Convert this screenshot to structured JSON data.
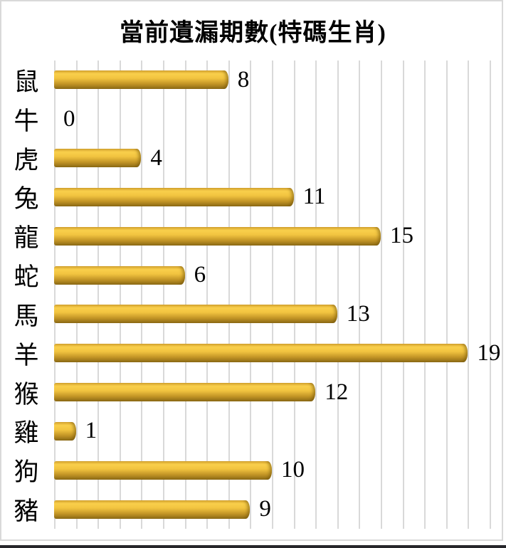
{
  "title": "當前遺漏期數(特碼生肖)",
  "chart_data": {
    "type": "bar",
    "orientation": "horizontal",
    "title": "當前遺漏期數(特碼生肖)",
    "categories": [
      "鼠",
      "牛",
      "虎",
      "兔",
      "龍",
      "蛇",
      "馬",
      "羊",
      "猴",
      "雞",
      "狗",
      "豬"
    ],
    "values": [
      8,
      0,
      4,
      11,
      15,
      6,
      13,
      19,
      12,
      1,
      10,
      9
    ],
    "xlabel": "",
    "ylabel": "",
    "xlim": [
      0,
      20
    ],
    "gridline_interval": 1,
    "grid": true,
    "legend": "none",
    "data_labels": "shown at bar end"
  },
  "colors": {
    "background": "#ffffff",
    "gridline": "#d9d9d9",
    "frame_border": "#d9d9d9",
    "text": "#000000",
    "bottom_edge": "#26262b",
    "bar_gradient_stops": [
      "#d8a530 0%",
      "#f9cf4b 18%",
      "#f2c440 42%",
      "#c49626 72%",
      "#8c6a15 100%"
    ]
  }
}
